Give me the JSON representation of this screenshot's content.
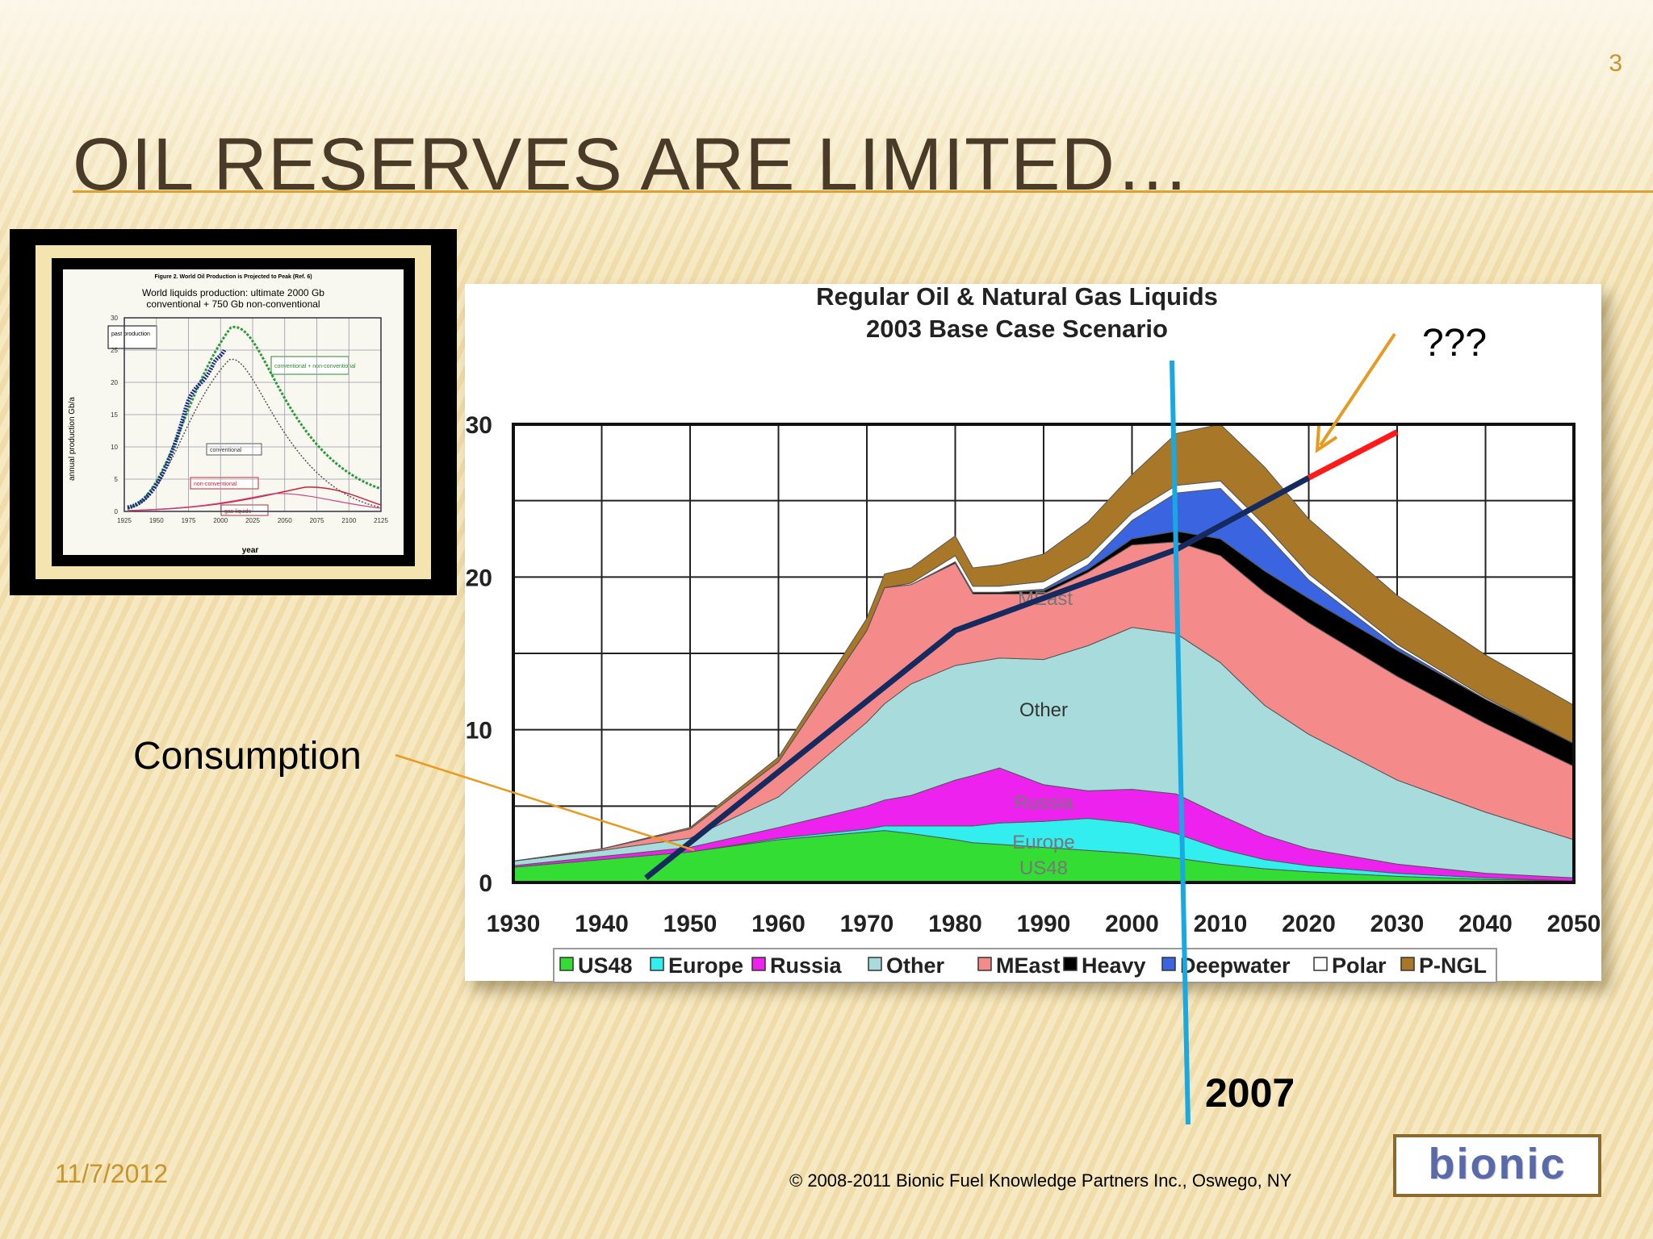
{
  "slide": {
    "number": "3",
    "title": "OIL RESERVES ARE LIMITED…",
    "date": "11/7/2012",
    "copyright": "© 2008-2011 Bionic Fuel Knowledge Partners Inc., Oswego, NY",
    "logo_text": "bionic"
  },
  "annotations": {
    "consumption": "Consumption",
    "question": "???",
    "year_marker": "2007"
  },
  "colors": {
    "US48": "#33dd33",
    "Europe": "#33eeee",
    "Russia": "#ee22ee",
    "Other": "#a8dcdc",
    "MEast": "#f48a8a",
    "Heavy": "#000000",
    "Deepwater": "#3a64e0",
    "Polar": "#ffffff",
    "P-NGL": "#a87828",
    "consumption": "#152a5e",
    "projection": "#ff1a1a",
    "marker_2007": "#1aa8e0",
    "arrow": "#e89a20"
  },
  "thumbnail": {
    "caption": "Figure 2. World Oil Production is Projected to Peak (Ref. 6)",
    "title_line1": "World liquids production: ultimate 2000 Gb",
    "title_line2": "conventional + 750 Gb non-conventional",
    "ylabel": "annual production Gb/a",
    "xlabel": "year",
    "xticks": [
      "1925",
      "1950",
      "1975",
      "2000",
      "2025",
      "2050",
      "2075",
      "2100",
      "2125"
    ],
    "yticks": [
      "0",
      "5",
      "10",
      "15",
      "20",
      "25",
      "30"
    ],
    "legend_past": "past production",
    "legend_total": "conventional + non-conventional",
    "label_conventional": "conventional",
    "label_nonconventional": "non-conventional",
    "label_gasliquids": "gas liquids"
  },
  "chart_data": {
    "type": "area",
    "title": "Regular Oil & Natural Gas Liquids",
    "subtitle": "2003 Base Case Scenario",
    "x": [
      1930,
      1940,
      1950,
      1960,
      1970,
      1972,
      1975,
      1980,
      1982,
      1985,
      1990,
      1995,
      2000,
      2005,
      2010,
      2015,
      2020,
      2030,
      2040,
      2050
    ],
    "xticks": [
      "1930",
      "1940",
      "1950",
      "1960",
      "1970",
      "1980",
      "1990",
      "2000",
      "2010",
      "2020",
      "2030",
      "2040",
      "2050"
    ],
    "yticks": [
      "0",
      "10",
      "20",
      "30"
    ],
    "xlim": [
      1930,
      2050
    ],
    "ylim": [
      0,
      30
    ],
    "grid": true,
    "legend_position": "bottom",
    "series": [
      {
        "name": "US48",
        "values": [
          1.0,
          1.5,
          2.0,
          2.8,
          3.3,
          3.4,
          3.2,
          2.8,
          2.6,
          2.5,
          2.3,
          2.1,
          1.9,
          1.6,
          1.2,
          0.9,
          0.7,
          0.4,
          0.2,
          0.1
        ]
      },
      {
        "name": "Europe",
        "values": [
          0.0,
          0.0,
          0.0,
          0.1,
          0.2,
          0.3,
          0.5,
          0.9,
          1.1,
          1.4,
          1.7,
          2.1,
          2.0,
          1.6,
          1.0,
          0.6,
          0.4,
          0.2,
          0.1,
          0.0
        ]
      },
      {
        "name": "Russia",
        "values": [
          0.1,
          0.2,
          0.3,
          0.7,
          1.5,
          1.7,
          2.0,
          3.0,
          3.3,
          3.6,
          2.4,
          1.8,
          2.2,
          2.6,
          2.2,
          1.6,
          1.1,
          0.6,
          0.3,
          0.2
        ]
      },
      {
        "name": "Other",
        "values": [
          0.3,
          0.4,
          0.6,
          2.0,
          5.5,
          6.3,
          7.3,
          7.5,
          7.4,
          7.2,
          8.2,
          9.5,
          10.6,
          10.5,
          10.0,
          8.5,
          7.5,
          5.5,
          4.0,
          2.5
        ]
      },
      {
        "name": "MEast",
        "values": [
          0.0,
          0.1,
          0.6,
          2.3,
          6.0,
          7.6,
          6.5,
          6.7,
          4.5,
          4.2,
          4.3,
          4.8,
          5.4,
          6.0,
          7.0,
          7.4,
          7.3,
          6.8,
          5.8,
          4.8
        ]
      },
      {
        "name": "Heavy",
        "values": [
          0.0,
          0.0,
          0.0,
          0.0,
          0.0,
          0.0,
          0.0,
          0.1,
          0.1,
          0.1,
          0.2,
          0.2,
          0.4,
          0.7,
          1.1,
          1.4,
          1.6,
          1.7,
          1.6,
          1.5
        ]
      },
      {
        "name": "Deepwater",
        "values": [
          0.0,
          0.0,
          0.0,
          0.0,
          0.0,
          0.0,
          0.0,
          0.0,
          0.0,
          0.0,
          0.1,
          0.3,
          1.2,
          2.5,
          3.3,
          2.5,
          1.2,
          0.2,
          0.0,
          0.0
        ]
      },
      {
        "name": "Polar",
        "values": [
          0.0,
          0.0,
          0.0,
          0.0,
          0.0,
          0.0,
          0.1,
          0.4,
          0.4,
          0.4,
          0.5,
          0.5,
          0.5,
          0.5,
          0.5,
          0.5,
          0.4,
          0.2,
          0.1,
          0.0
        ]
      },
      {
        "name": "P-NGL",
        "values": [
          0.0,
          0.0,
          0.1,
          0.3,
          0.8,
          0.9,
          1.0,
          1.3,
          1.2,
          1.4,
          1.8,
          2.3,
          2.5,
          3.4,
          3.7,
          3.8,
          3.6,
          3.2,
          2.8,
          2.5
        ]
      }
    ],
    "consumption": {
      "x": [
        1945,
        1980,
        2005,
        2020
      ],
      "values": [
        0.3,
        16.5,
        21.8,
        26.5
      ]
    },
    "projection": {
      "x": [
        2020,
        2030
      ],
      "values": [
        26.5,
        29.5
      ]
    },
    "marker_year": 2005.5,
    "area_labels": [
      "MEast",
      "Other",
      "Russia",
      "Europe",
      "US48"
    ]
  }
}
